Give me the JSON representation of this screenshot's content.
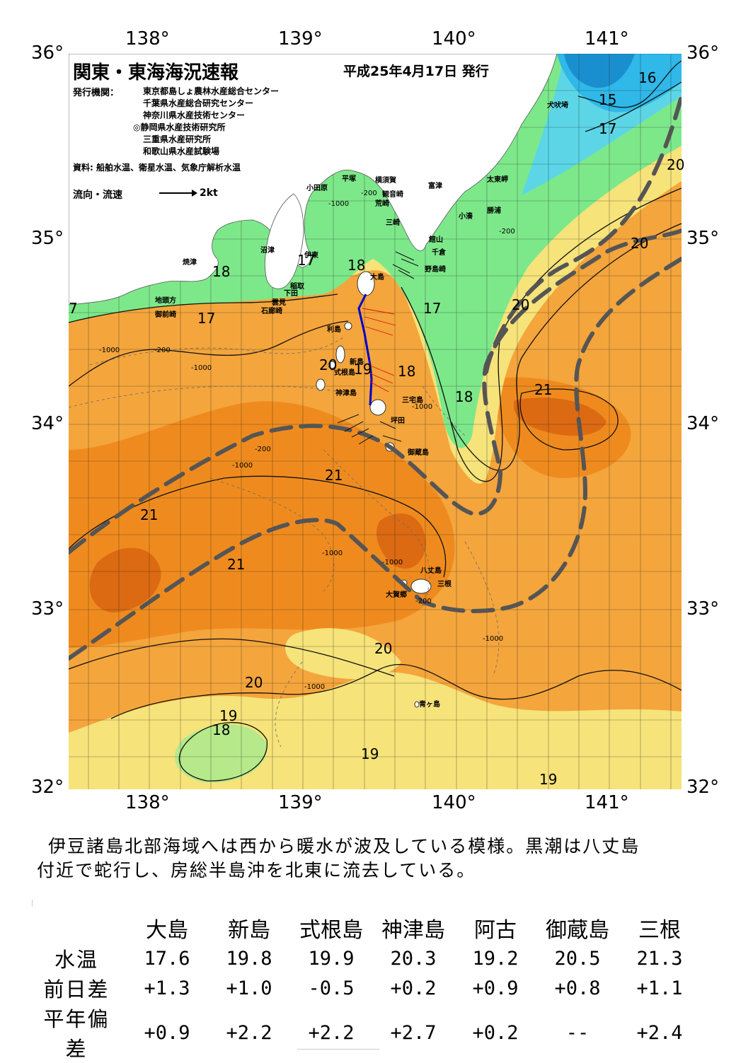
{
  "header": {
    "title": "関東・東海海況速報",
    "issue_date": "平成25年4月17日 発行",
    "agency_label": "発行機関：",
    "agencies": [
      "東京都島しょ農林水産総合センター",
      "千葉県水産総合研究センター",
      "神奈川県水産技術センター",
      "◎静岡県水産技術研究所",
      "三重県水産研究所",
      "和歌山県水産試験場"
    ],
    "source": "資料: 船舶水温、衛星水温、気象庁解析水温",
    "legend_label": "流向・流速",
    "legend_scale": "2kt"
  },
  "axes": {
    "lon_labels": [
      "138°",
      "139°",
      "140°",
      "141°"
    ],
    "lat_labels": [
      "36°",
      "35°",
      "34°",
      "33°",
      "32°"
    ]
  },
  "places": [
    "小田原",
    "平塚",
    "横須賀",
    "観音崎",
    "荒崎",
    "三崎",
    "富津",
    "館山",
    "千倉",
    "野島崎",
    "太東岬",
    "勝浦",
    "小湊",
    "犬吠埼",
    "沼津",
    "焼津",
    "伊東",
    "稲取",
    "下田",
    "雲見",
    "石廊崎",
    "地頭方",
    "御前崎",
    "大島",
    "利島",
    "新島",
    "式根島",
    "神津島",
    "三宅島",
    "坪田",
    "御蔵島",
    "八丈島",
    "三根",
    "大賀郷",
    "青ヶ島"
  ],
  "isotherm_labels": [
    "7",
    "17",
    "18",
    "17",
    "18",
    "17",
    "20",
    "19",
    "18",
    "18",
    "21",
    "20",
    "20",
    "16",
    "15",
    "17",
    "20",
    "21",
    "21",
    "21",
    "20",
    "20",
    "19",
    "18",
    "19",
    "19"
  ],
  "depth_labels": [
    "-200",
    "-1000",
    "-1000",
    "-200",
    "-1000",
    "-200",
    "-1000",
    "-1000",
    "-1000",
    "-1000",
    "-1000",
    "-200",
    "-200",
    "-1000"
  ],
  "comment": [
    "伊豆諸島北部海域へは西から暖水が波及している模様。黒潮は八丈島",
    "付近で蛇行し、房総半島沖を北東に流去している。"
  ],
  "table": {
    "stations": [
      "大島",
      "新島",
      "式根島",
      "神津島",
      "阿古",
      "御蔵島",
      "三根"
    ],
    "rows": [
      {
        "label": "水温",
        "values": [
          "17.6",
          "19.8",
          "19.9",
          "20.3",
          "19.2",
          "20.5",
          "21.3"
        ]
      },
      {
        "label": "前日差",
        "values": [
          "+1.3",
          "+1.0",
          "-0.5",
          "+0.2",
          "+0.9",
          "+0.8",
          "+1.1"
        ]
      },
      {
        "label": "平年偏差",
        "values": [
          "+0.9",
          "+2.2",
          "+2.2",
          "+2.7",
          "+0.2",
          "--",
          "+2.4"
        ]
      }
    ]
  },
  "colors": {
    "t15": "#2fb8e8",
    "t16": "#5cd6e6",
    "t17": "#7de88a",
    "t18": "#b6e98a",
    "t19": "#f6e37a",
    "t20": "#f4a53c",
    "t21": "#ef8b1e",
    "t22": "#dc6a12",
    "land": "#ffffff",
    "kuroshio": "#555555"
  }
}
